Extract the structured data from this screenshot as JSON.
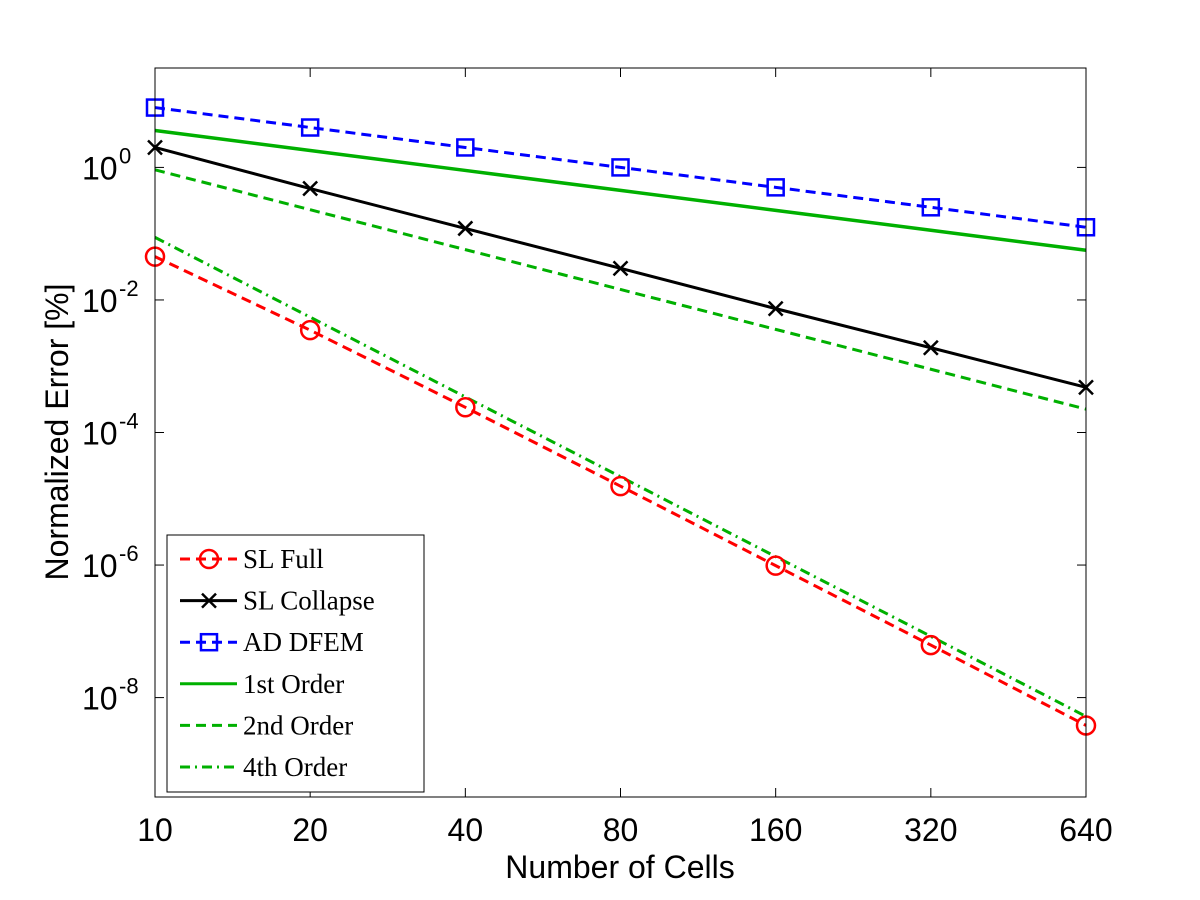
{
  "chart_data": {
    "type": "line",
    "xlabel": "Number of Cells",
    "ylabel": "Normalized Error [%]",
    "x_scale": "log2",
    "y_scale": "log10",
    "xlim": [
      10,
      640
    ],
    "ylim_exponents": [
      -9.5,
      1.5
    ],
    "x": [
      10,
      20,
      40,
      80,
      160,
      320,
      640
    ],
    "x_tick_labels": [
      "10",
      "20",
      "40",
      "80",
      "160",
      "320",
      "640"
    ],
    "y_tick_labels": [
      {
        "base": "10",
        "exp": "0",
        "exponent": 0
      },
      {
        "base": "10",
        "exp": "-2",
        "exponent": -2
      },
      {
        "base": "10",
        "exp": "-4",
        "exponent": -4
      },
      {
        "base": "10",
        "exp": "-6",
        "exponent": -6
      },
      {
        "base": "10",
        "exp": "-8",
        "exponent": -8
      }
    ],
    "grid": false,
    "legend_position": "bottom-left",
    "series": [
      {
        "name": "SL Full",
        "color": "#ff0000",
        "dash": "dashed",
        "marker": "circle",
        "values": [
          0.045,
          0.0035,
          0.00024,
          1.55e-05,
          9.8e-07,
          6.2e-08,
          3.8e-09
        ]
      },
      {
        "name": "SL Collapse",
        "color": "#000000",
        "dash": "solid",
        "marker": "x",
        "values": [
          2.0,
          0.48,
          0.12,
          0.03,
          0.0074,
          0.0019,
          0.00048
        ]
      },
      {
        "name": "AD DFEM",
        "color": "#0000ff",
        "dash": "dashed",
        "marker": "square",
        "values": [
          8.0,
          4.0,
          2.0,
          1.0,
          0.5,
          0.25,
          0.125
        ]
      },
      {
        "name": "1st Order",
        "color": "#00b000",
        "dash": "solid",
        "marker": "none",
        "values": [
          3.6,
          1.8,
          0.9,
          0.45,
          0.225,
          0.1125,
          0.05625
        ]
      },
      {
        "name": "2nd Order",
        "color": "#00b000",
        "dash": "dashed",
        "marker": "none",
        "values": [
          0.92,
          0.23,
          0.0575,
          0.0144,
          0.0036,
          0.0009,
          0.000225
        ]
      },
      {
        "name": "4th Order",
        "color": "#00b000",
        "dash": "dashdot",
        "marker": "none",
        "values": [
          0.088,
          0.0055,
          0.000344,
          2.15e-05,
          1.34e-06,
          8.4e-08,
          5.2e-09
        ]
      }
    ]
  }
}
